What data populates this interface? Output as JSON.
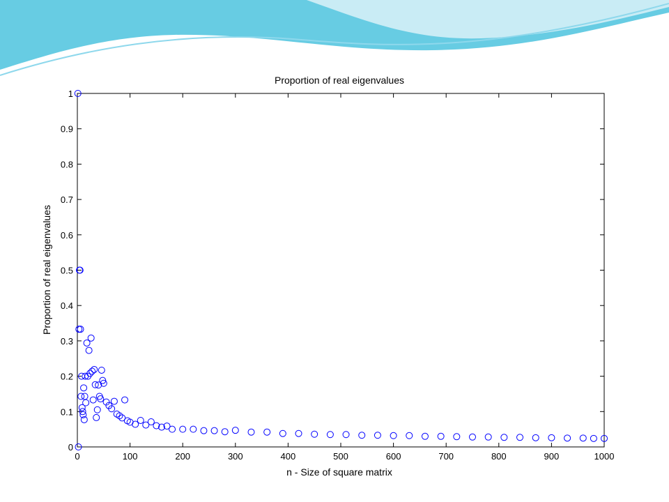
{
  "slide": {
    "accent_colors": [
      "#4cc3de",
      "#8ed8ec",
      "#c9ecf5"
    ]
  },
  "chart_data": {
    "type": "scatter",
    "title": "Proportion of real eigenvalues",
    "xlabel": "n - Size of square matrix",
    "ylabel": "Proportion of real eigenvalues",
    "xlim": [
      0,
      1000
    ],
    "ylim": [
      0,
      1
    ],
    "x_ticks": [
      "0",
      "100",
      "200",
      "300",
      "400",
      "500",
      "600",
      "700",
      "800",
      "900",
      "1000"
    ],
    "y_ticks": [
      "0",
      "0.1",
      "0.2",
      "0.3",
      "0.4",
      "0.5",
      "0.6",
      "0.7",
      "0.8",
      "0.9",
      "1"
    ],
    "grid": false,
    "marker": "open-circle",
    "marker_color": "#0000ff",
    "series": [
      {
        "x": [
          1,
          2,
          3,
          4,
          5,
          6,
          7,
          8,
          9,
          10,
          11,
          12,
          13,
          14,
          15,
          16,
          18,
          20,
          22,
          24,
          26,
          28,
          30,
          32,
          34,
          36,
          38,
          40,
          42,
          44,
          46,
          48,
          50,
          55,
          60,
          65,
          70,
          75,
          80,
          85,
          90,
          95,
          100,
          110,
          120,
          130,
          140,
          150,
          160,
          170,
          180,
          200,
          220,
          240,
          260,
          280,
          300,
          330,
          360,
          390,
          420,
          450,
          480,
          510,
          540,
          570,
          600,
          630,
          660,
          690,
          720,
          750,
          780,
          810,
          840,
          870,
          900,
          930,
          960,
          980,
          1000
        ],
        "y": [
          1.0,
          0.0,
          0.333,
          0.5,
          0.5,
          0.333,
          0.143,
          0.2,
          0.111,
          0.1,
          0.091,
          0.167,
          0.077,
          0.143,
          0.2,
          0.125,
          0.294,
          0.2,
          0.273,
          0.208,
          0.308,
          0.214,
          0.133,
          0.219,
          0.176,
          0.083,
          0.105,
          0.175,
          0.143,
          0.136,
          0.217,
          0.188,
          0.18,
          0.127,
          0.117,
          0.108,
          0.129,
          0.093,
          0.088,
          0.082,
          0.133,
          0.074,
          0.07,
          0.064,
          0.075,
          0.062,
          0.071,
          0.06,
          0.056,
          0.059,
          0.05,
          0.05,
          0.05,
          0.046,
          0.046,
          0.043,
          0.047,
          0.042,
          0.042,
          0.038,
          0.038,
          0.036,
          0.035,
          0.035,
          0.033,
          0.033,
          0.032,
          0.032,
          0.03,
          0.03,
          0.029,
          0.028,
          0.028,
          0.027,
          0.027,
          0.026,
          0.026,
          0.025,
          0.025,
          0.024,
          0.024
        ]
      }
    ]
  }
}
